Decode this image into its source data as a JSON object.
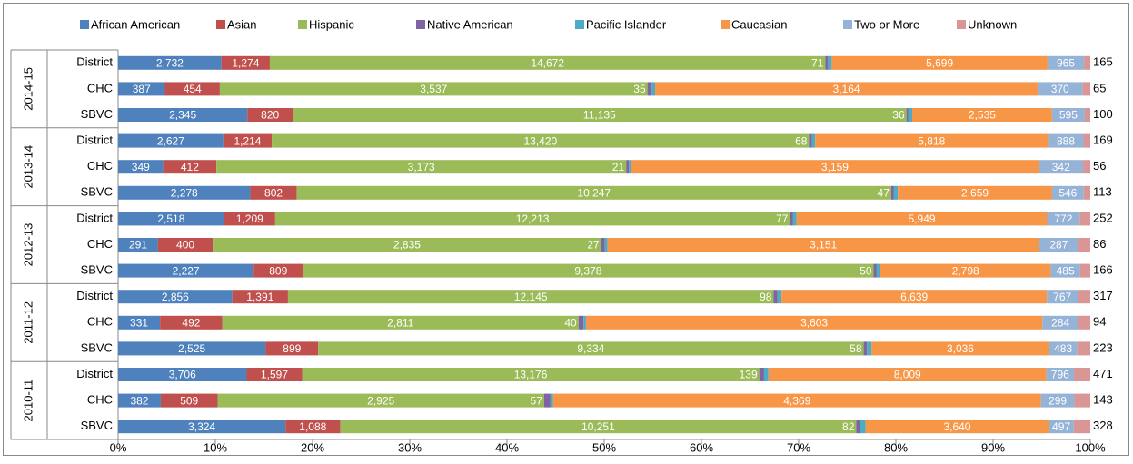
{
  "chart_data": {
    "type": "stacked-bar-100",
    "orientation": "horizontal",
    "groups": [
      "2014-15",
      "2013-14",
      "2012-13",
      "2011-12",
      "2010-11"
    ],
    "categories": [
      "District",
      "CHC",
      "SBVC",
      "District",
      "CHC",
      "SBVC",
      "District",
      "CHC",
      "SBVC",
      "District",
      "CHC",
      "SBVC",
      "District",
      "CHC",
      "SBVC"
    ],
    "series": [
      {
        "name": "African American",
        "color": "#4f81bd",
        "values": [
          2732,
          387,
          2345,
          2627,
          349,
          2278,
          2518,
          291,
          2227,
          2856,
          331,
          2525,
          3706,
          382,
          3324
        ],
        "value_labels": [
          "2,732",
          "387",
          "2,345",
          "2,627",
          "349",
          "2,278",
          "2,518",
          "291",
          "2,227",
          "2,856",
          "331",
          "2,525",
          "3,706",
          "382",
          "3,324"
        ]
      },
      {
        "name": "Asian",
        "color": "#c0504d",
        "values": [
          1274,
          454,
          820,
          1214,
          412,
          802,
          1209,
          400,
          809,
          1391,
          492,
          899,
          1597,
          509,
          1088
        ],
        "value_labels": [
          "1,274",
          "454",
          "820",
          "1,214",
          "412",
          "802",
          "1,209",
          "400",
          "809",
          "1,391",
          "492",
          "899",
          "1,597",
          "509",
          "1,088"
        ]
      },
      {
        "name": "Hispanic",
        "color": "#9bbb59",
        "values": [
          14672,
          3537,
          11135,
          13420,
          3173,
          10247,
          12213,
          2835,
          9378,
          12145,
          2811,
          9334,
          13176,
          2925,
          10251
        ],
        "value_labels": [
          "14,672",
          "3,537",
          "11,135",
          "13,420",
          "3,173",
          "10,247",
          "12,213",
          "2,835",
          "9,378",
          "12,145",
          "2,811",
          "9,334",
          "13,176",
          "2,925",
          "10,251"
        ]
      },
      {
        "name": "Native American",
        "color": "#8064a2",
        "values": [
          71,
          35,
          36,
          68,
          21,
          47,
          77,
          27,
          50,
          98,
          40,
          58,
          139,
          57,
          82
        ]
      },
      {
        "name": "Pacific Islander",
        "color": "#4bacc6",
        "values": [
          97,
          28,
          69,
          83,
          16,
          67,
          80,
          19,
          61,
          97,
          19,
          78,
          127,
          24,
          103
        ]
      },
      {
        "name": "Caucasian",
        "color": "#f79646",
        "values": [
          5699,
          3164,
          2535,
          5818,
          3159,
          2659,
          5949,
          3151,
          2798,
          6639,
          3603,
          3036,
          8009,
          4369,
          3640
        ],
        "value_labels": [
          "5,699",
          "3,164",
          "2,535",
          "5,818",
          "3,159",
          "2,659",
          "5,949",
          "3,151",
          "2,798",
          "6,639",
          "3,603",
          "3,036",
          "8,009",
          "4,369",
          "3,640"
        ]
      },
      {
        "name": "Two or More",
        "color": "#95b3d7",
        "values": [
          965,
          370,
          595,
          888,
          342,
          546,
          772,
          287,
          485,
          767,
          284,
          483,
          796,
          299,
          497
        ]
      },
      {
        "name": "Unknown",
        "color": "#d99694",
        "values": [
          165,
          65,
          100,
          169,
          56,
          113,
          252,
          86,
          166,
          317,
          94,
          223,
          471,
          143,
          328
        ]
      }
    ],
    "xlim": [
      0,
      100
    ],
    "xticks": [
      {
        "value": 0,
        "label": "0%"
      },
      {
        "value": 10,
        "label": "10%"
      },
      {
        "value": 20,
        "label": "20%"
      },
      {
        "value": 30,
        "label": "30%"
      },
      {
        "value": 40,
        "label": "40%"
      },
      {
        "value": 50,
        "label": "50%"
      },
      {
        "value": 60,
        "label": "60%"
      },
      {
        "value": 70,
        "label": "70%"
      },
      {
        "value": 80,
        "label": "80%"
      },
      {
        "value": 90,
        "label": "90%"
      },
      {
        "value": 100,
        "label": "100%"
      }
    ],
    "legend": "top"
  }
}
